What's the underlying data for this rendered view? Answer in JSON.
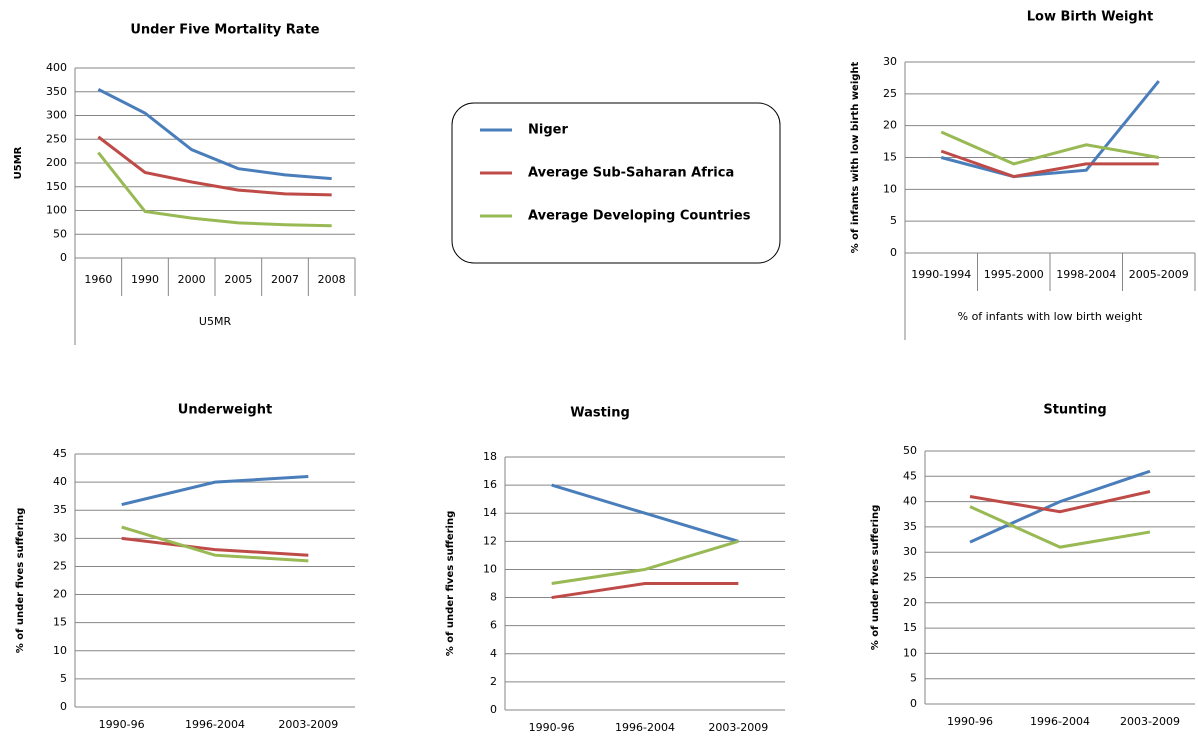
{
  "legend": [
    {
      "name": "Niger",
      "color": "#4a7ebb"
    },
    {
      "name": "Average Sub-Saharan Africa",
      "color": "#be4b48"
    },
    {
      "name": "Average Developing Countries",
      "color": "#98b954"
    }
  ],
  "chart_data": [
    {
      "type": "line",
      "title": "Under Five Mortality Rate",
      "ylabel": "U5MR",
      "xlabel": "U5MR",
      "category_table": true,
      "grid": true,
      "categories": [
        "1960",
        "1990",
        "2000",
        "2005",
        "2007",
        "2008"
      ],
      "series": [
        {
          "values": [
            355,
            305,
            228,
            188,
            175,
            167
          ]
        },
        {
          "values": [
            255,
            180,
            160,
            143,
            135,
            133
          ]
        },
        {
          "values": [
            222,
            98,
            84,
            74,
            70,
            68
          ]
        }
      ],
      "ylim": [
        0,
        400
      ],
      "yticks": [
        0,
        50,
        100,
        150,
        200,
        250,
        300,
        350,
        400
      ]
    },
    {
      "type": "line",
      "title": "Low Birth Weight",
      "ylabel": "% of infants with low birth weight",
      "xlabel": "% of infants with low birth weight",
      "category_table": true,
      "grid": true,
      "categories": [
        "1990-1994",
        "1995-2000",
        "1998-2004",
        "2005-2009"
      ],
      "series": [
        {
          "values": [
            15,
            12,
            13,
            27
          ]
        },
        {
          "values": [
            16,
            12,
            14,
            14
          ]
        },
        {
          "values": [
            19,
            14,
            17,
            15
          ]
        }
      ],
      "ylim": [
        0,
        30
      ],
      "yticks": [
        0,
        5,
        10,
        15,
        20,
        25,
        30
      ]
    },
    {
      "type": "line",
      "title": "Underweight",
      "ylabel": "% of under fives suffering",
      "grid": true,
      "categories": [
        "1990-96",
        "1996-2004",
        "2003-2009"
      ],
      "series": [
        {
          "values": [
            36,
            40,
            41
          ]
        },
        {
          "values": [
            30,
            28,
            27
          ]
        },
        {
          "values": [
            32,
            27,
            26
          ]
        }
      ],
      "ylim": [
        0,
        45
      ],
      "yticks": [
        0,
        5,
        10,
        15,
        20,
        25,
        30,
        35,
        40,
        45
      ]
    },
    {
      "type": "line",
      "title": "Wasting",
      "ylabel": "% of under fives suffering",
      "grid": true,
      "categories": [
        "1990-96",
        "1996-2004",
        "2003-2009"
      ],
      "series": [
        {
          "values": [
            16,
            14,
            12
          ]
        },
        {
          "values": [
            8,
            9,
            9
          ]
        },
        {
          "values": [
            9,
            10,
            12
          ]
        }
      ],
      "ylim": [
        0,
        18
      ],
      "yticks": [
        0,
        2,
        4,
        6,
        8,
        10,
        12,
        14,
        16,
        18
      ]
    },
    {
      "type": "line",
      "title": "Stunting",
      "ylabel": "% of under fives suffering",
      "grid": true,
      "categories": [
        "1990-96",
        "1996-2004",
        "2003-2009"
      ],
      "series": [
        {
          "values": [
            32,
            40,
            46
          ]
        },
        {
          "values": [
            41,
            38,
            42
          ]
        },
        {
          "values": [
            39,
            31,
            34
          ]
        }
      ],
      "ylim": [
        0,
        50
      ],
      "yticks": [
        0,
        5,
        10,
        15,
        20,
        25,
        30,
        35,
        40,
        45,
        50
      ]
    }
  ]
}
